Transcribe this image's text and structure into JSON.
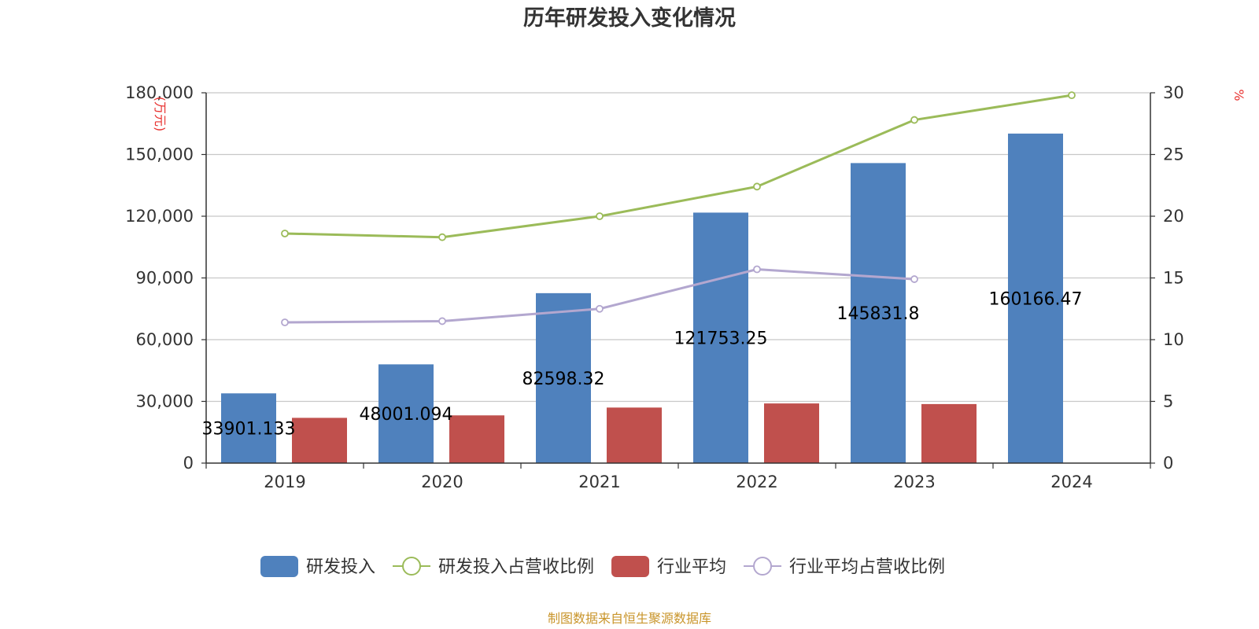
{
  "chart_data": {
    "type": "bar",
    "title": "历年研发投入变化情况",
    "categories": [
      "2019",
      "2020",
      "2021",
      "2022",
      "2023",
      "2024"
    ],
    "y_left": {
      "unit": "(万元)",
      "ylim": [
        0,
        180000
      ],
      "ticks": [
        0,
        30000,
        60000,
        90000,
        120000,
        150000,
        180000
      ],
      "tick_labels": [
        "0",
        "30,000",
        "60,000",
        "90,000",
        "120,000",
        "150,000",
        "180,000"
      ]
    },
    "y_right": {
      "unit": "%",
      "ylim": [
        0,
        30
      ],
      "ticks": [
        0,
        5,
        10,
        15,
        20,
        25,
        30
      ],
      "tick_labels": [
        "0",
        "5",
        "10",
        "15",
        "20",
        "25",
        "30"
      ]
    },
    "grid": true,
    "legend_position": "bottom",
    "series": [
      {
        "name": "研发投入",
        "type": "bar",
        "axis": "left",
        "color": "#4f81bd",
        "values": [
          33901.133,
          48001.094,
          82598.32,
          121753.25,
          145831.8,
          160166.47
        ],
        "labels": [
          "33901.133",
          "48001.094",
          "82598.32",
          "121753.25",
          "145831.8",
          "160166.47"
        ]
      },
      {
        "name": "研发投入占营收比例",
        "type": "line",
        "axis": "right",
        "color": "#9bbb59",
        "values": [
          18.6,
          18.3,
          20.0,
          22.4,
          27.8,
          29.8
        ]
      },
      {
        "name": "行业平均",
        "type": "bar",
        "axis": "left",
        "color": "#c0504d",
        "values": [
          22000,
          23200,
          27000,
          29000,
          28700,
          null
        ]
      },
      {
        "name": "行业平均占营收比例",
        "type": "line",
        "axis": "right",
        "color": "#b3a7cf",
        "values": [
          11.4,
          11.5,
          12.5,
          15.7,
          14.9,
          null
        ]
      }
    ],
    "source": "制图数据来自恒生聚源数据库"
  }
}
